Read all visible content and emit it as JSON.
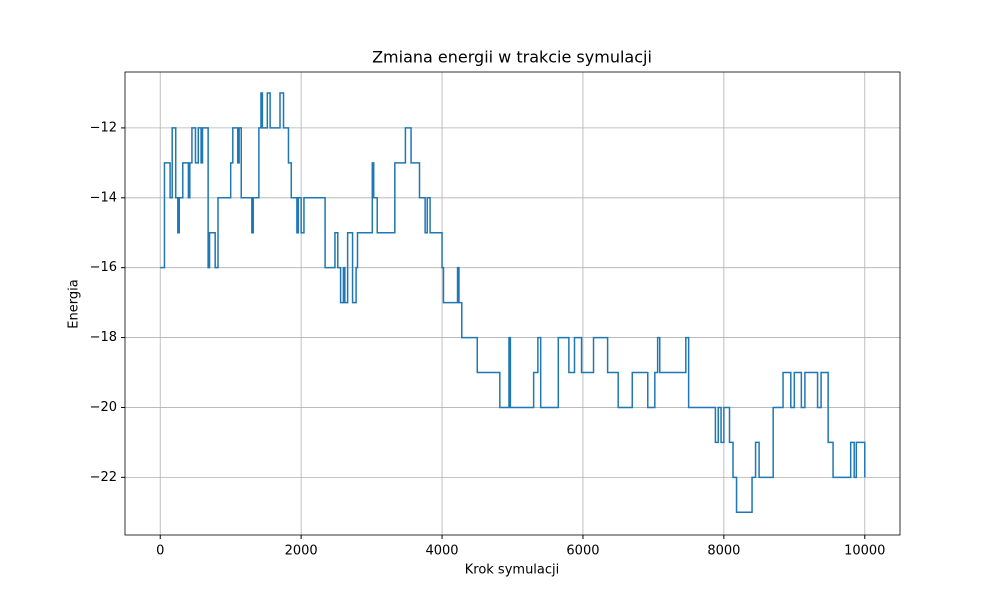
{
  "chart_data": {
    "type": "line",
    "drawstyle": "steps-post",
    "title": "Zmiana energii w trakcie symulacji",
    "x_label": "Krok symulacji",
    "y_label": "Energia",
    "grid": true,
    "xlim": [
      -500,
      10500
    ],
    "ylim": [
      -23.65,
      -10.4
    ],
    "xticks": [
      0,
      2000,
      4000,
      6000,
      8000,
      10000
    ],
    "yticks": [
      {
        "value": -22,
        "label": "−22"
      },
      {
        "value": -20,
        "label": "−20"
      },
      {
        "value": -18,
        "label": "−18"
      },
      {
        "value": -16,
        "label": "−16"
      },
      {
        "value": -14,
        "label": "−14"
      },
      {
        "value": -12,
        "label": "−12"
      }
    ],
    "x": [
      0,
      60,
      140,
      170,
      220,
      250,
      270,
      320,
      400,
      420,
      450,
      500,
      540,
      580,
      600,
      680,
      700,
      780,
      820,
      1000,
      1030,
      1100,
      1120,
      1150,
      1300,
      1320,
      1400,
      1430,
      1450,
      1520,
      1560,
      1700,
      1750,
      1820,
      1860,
      1940,
      1960,
      2000,
      2040,
      2200,
      2340,
      2480,
      2520,
      2560,
      2600,
      2620,
      2660,
      2730,
      2780,
      2800,
      3010,
      3030,
      3080,
      3330,
      3480,
      3560,
      3680,
      3760,
      3790,
      3830,
      4000,
      4020,
      4220,
      4240,
      4280,
      4500,
      4820,
      4950,
      4970,
      5300,
      5360,
      5400,
      5650,
      5800,
      5880,
      5980,
      6150,
      6350,
      6500,
      6700,
      6920,
      7020,
      7060,
      7090,
      7460,
      7500,
      7880,
      7920,
      7960,
      8000,
      8080,
      8130,
      8180,
      8400,
      8450,
      8500,
      8700,
      8840,
      8950,
      9000,
      9100,
      9150,
      9330,
      9380,
      9480,
      9550,
      9800,
      9850,
      9880,
      10000
    ],
    "series": [
      {
        "color": "#1f77b4",
        "values": [
          -16,
          -13,
          -14,
          -12,
          -14,
          -15,
          -14,
          -13,
          -14,
          -13,
          -12,
          -13,
          -12,
          -13,
          -12,
          -16,
          -15,
          -16,
          -14,
          -13,
          -12,
          -13,
          -12,
          -14,
          -15,
          -14,
          -12,
          -11,
          -12,
          -11,
          -12,
          -11,
          -12,
          -13,
          -14,
          -15,
          -14,
          -15,
          -14,
          -14,
          -16,
          -15,
          -16,
          -17,
          -16,
          -17,
          -15,
          -17,
          -16,
          -15,
          -13,
          -14,
          -15,
          -13,
          -12,
          -13,
          -14,
          -15,
          -14,
          -15,
          -16,
          -17,
          -16,
          -17,
          -18,
          -19,
          -20,
          -18,
          -20,
          -19,
          -18,
          -20,
          -18,
          -19,
          -18,
          -19,
          -18,
          -19,
          -20,
          -19,
          -20,
          -19,
          -18,
          -19,
          -18,
          -20,
          -21,
          -20,
          -21,
          -20,
          -21,
          -22,
          -23,
          -22,
          -21,
          -22,
          -20,
          -19,
          -20,
          -19,
          -20,
          -19,
          -20,
          -19,
          -21,
          -22,
          -21,
          -22,
          -21,
          -22
        ]
      }
    ]
  }
}
